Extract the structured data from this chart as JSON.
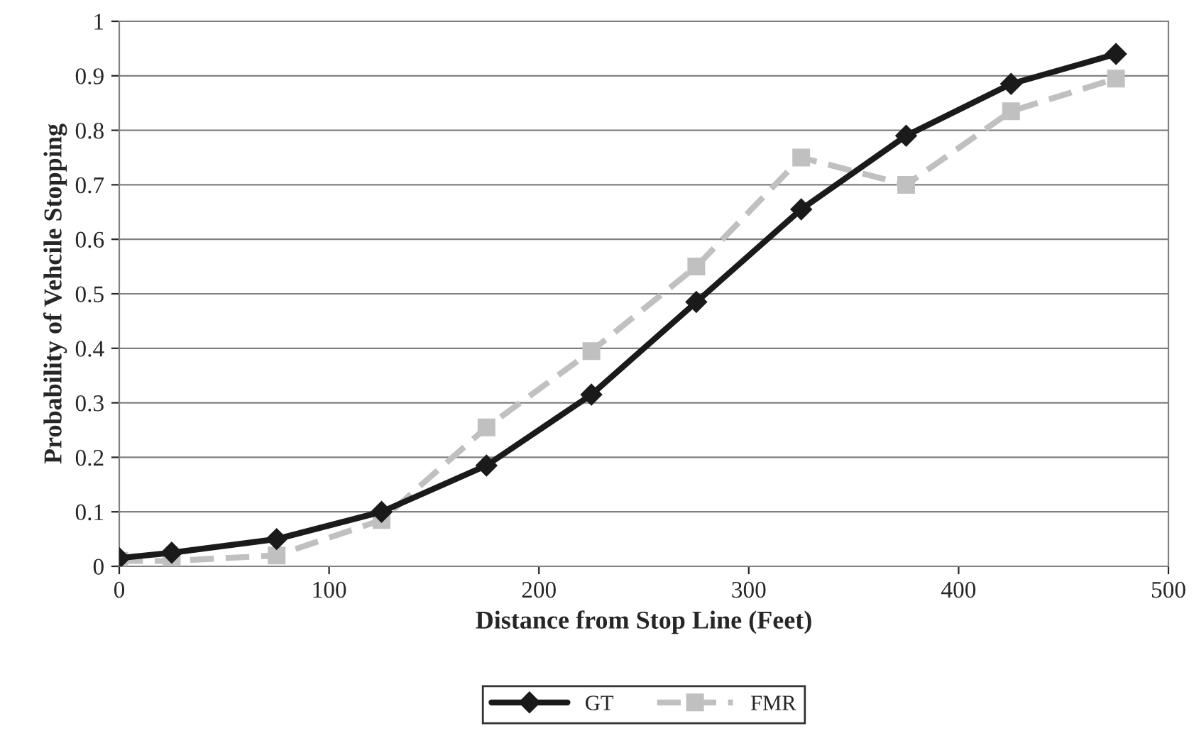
{
  "chart_data": {
    "type": "line",
    "xlabel": "Distance from Stop Line (Feet)",
    "ylabel": "Probability of Vehcile Stopping",
    "x": [
      0,
      25,
      75,
      125,
      175,
      225,
      275,
      325,
      375,
      425,
      475
    ],
    "series": [
      {
        "name": "GT",
        "color": "#1a1a1a",
        "marker": "diamond",
        "line_style": "solid",
        "values": [
          0.015,
          0.025,
          0.05,
          0.1,
          0.185,
          0.315,
          0.485,
          0.655,
          0.79,
          0.885,
          0.94
        ]
      },
      {
        "name": "FMR",
        "color": "#c0c0c0",
        "marker": "square",
        "line_style": "dashed",
        "values": [
          0.01,
          0.01,
          0.02,
          0.085,
          0.255,
          0.395,
          0.55,
          0.75,
          0.7,
          0.835,
          0.895
        ]
      }
    ],
    "xlim": [
      0,
      500
    ],
    "xticks": [
      0,
      100,
      200,
      300,
      400,
      500
    ],
    "ylim": [
      0,
      1
    ],
    "yticks": [
      0,
      0.1,
      0.2,
      0.3,
      0.4,
      0.5,
      0.6,
      0.7,
      0.8,
      0.9,
      1
    ],
    "grid": "y",
    "legend": "bottom"
  }
}
